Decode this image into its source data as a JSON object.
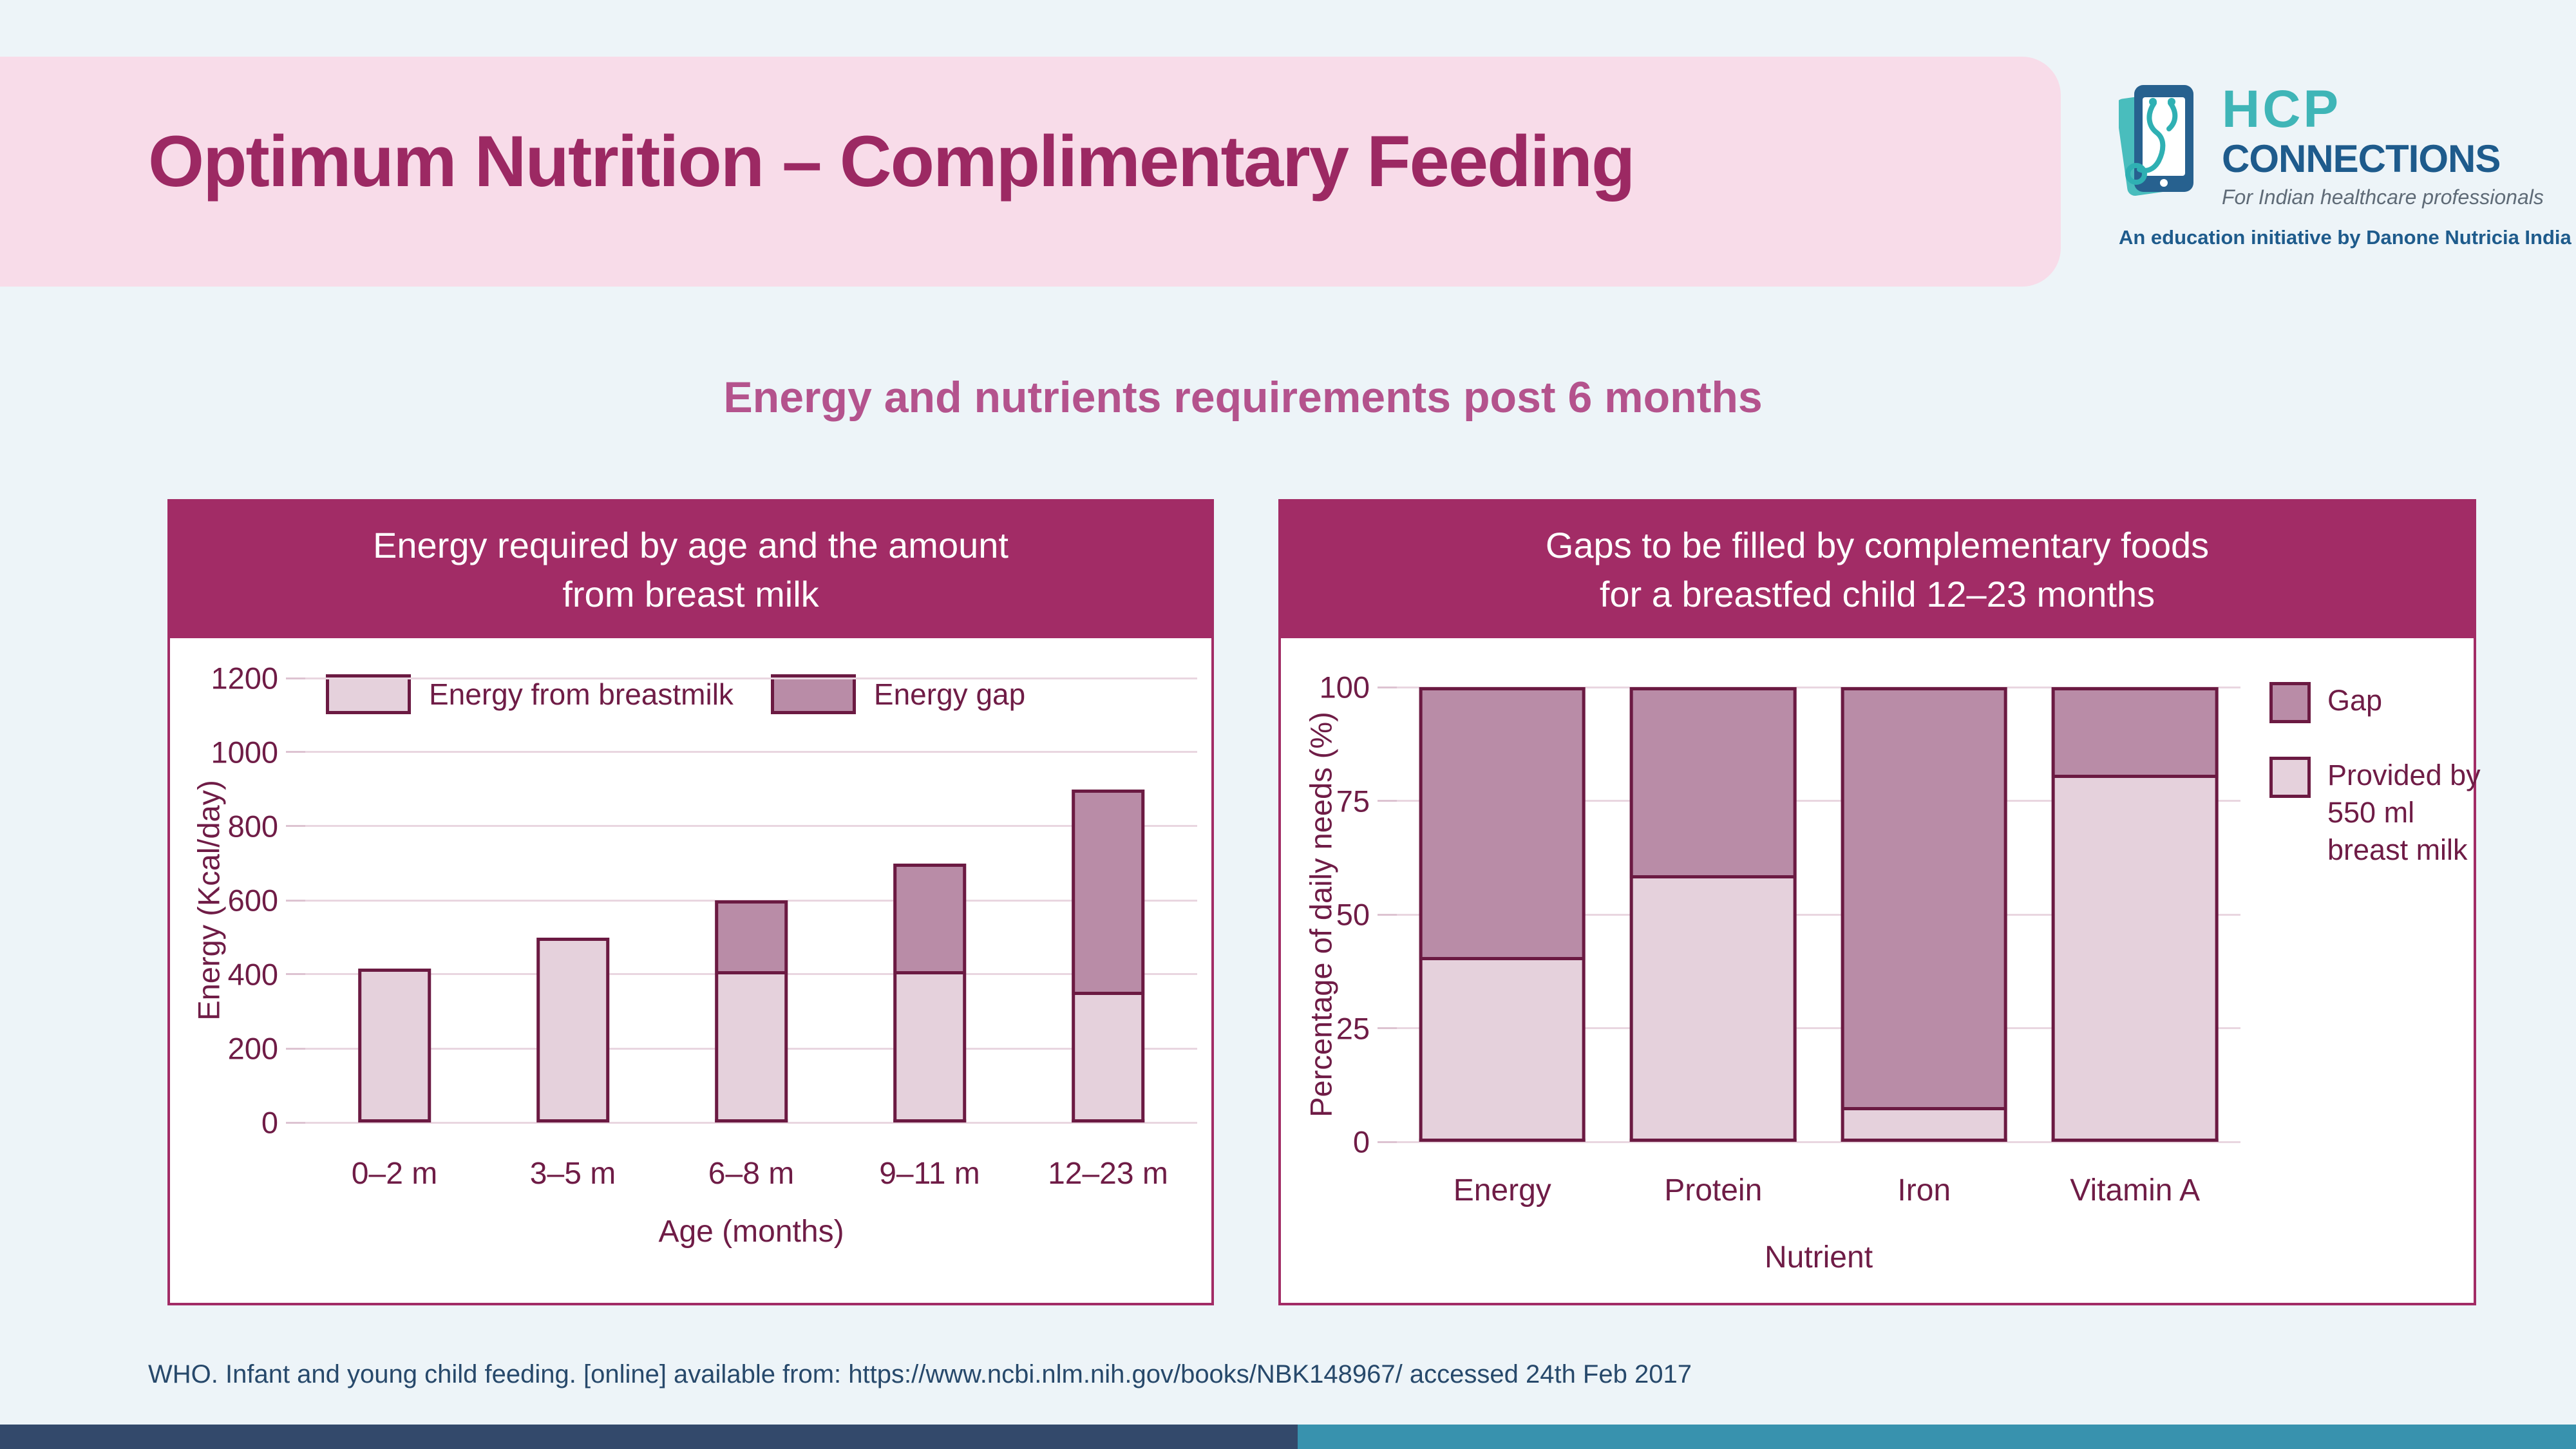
{
  "page": {
    "title": "Optimum Nutrition – Complimentary Feeding",
    "subtitle": "Energy and nutrients requirements post 6 months",
    "citation": "WHO. Infant and young child feeding. [online] available from: https://www.ncbi.nlm.nih.gov/books/NBK148967/ accessed 24th Feb 2017"
  },
  "logo": {
    "brand_line1": "HCP",
    "brand_line2": "CONNECTIONS",
    "tagline": "For Indian healthcare professionals",
    "initiative": "An education initiative by Danone Nutricia India"
  },
  "colors": {
    "page_background": "#edf4f8",
    "header_band": "#f8dce9",
    "title_text": "#9c2963",
    "subtitle_text": "#b4538d",
    "panel_magenta": "#a22c66",
    "bar_light": "#e5d1dc",
    "bar_dark": "#b98ca7",
    "bar_border": "#6b1a42",
    "axis_text": "#6f1c46",
    "gridline": "#e9d6e0",
    "citation_text": "#27496b",
    "footer_navy": "#33496b",
    "footer_teal": "#3892ae",
    "logo_teal": "#3fb5b7",
    "logo_blue": "#1e5b8c"
  },
  "chart_data": [
    {
      "type": "bar",
      "stacked": true,
      "title": "Energy required by age and the amount from breast milk",
      "title_lines": [
        "Energy required by age and the amount",
        "from breast milk"
      ],
      "categories": [
        "0–2 m",
        "3–5 m",
        "6–8 m",
        "9–11 m",
        "12–23 m"
      ],
      "series": [
        {
          "name": "Energy from breastmilk",
          "color": "#e5d1dc",
          "values": [
            415,
            500,
            400,
            400,
            345
          ]
        },
        {
          "name": "Energy gap",
          "color": "#b98ca7",
          "values": [
            0,
            0,
            200,
            300,
            555
          ]
        }
      ],
      "xlabel": "Age (months)",
      "ylabel": "Energy (Kcal/day)",
      "ylim": [
        0,
        1200
      ],
      "yticks": [
        0,
        200,
        400,
        600,
        800,
        1000,
        1200
      ],
      "grid": true,
      "legend_position": "inside-top-left-horizontal"
    },
    {
      "type": "bar",
      "stacked": true,
      "title": "Gaps to be filled by complementary foods for a breastfed child 12–23 months",
      "title_lines": [
        "Gaps to be filled by complementary foods",
        "for a breastfed child 12–23 months"
      ],
      "categories": [
        "Energy",
        "Protein",
        "Iron",
        "Vitamin A"
      ],
      "series": [
        {
          "name": "Provided by 550 ml breast milk",
          "color": "#e5d1dc",
          "values": [
            40,
            58,
            7,
            80
          ]
        },
        {
          "name": "Gap",
          "color": "#b98ca7",
          "values": [
            60,
            42,
            93,
            20
          ]
        }
      ],
      "xlabel": "Nutrient",
      "ylabel": "Percentage of daily needs (%)",
      "ylim": [
        0,
        100
      ],
      "yticks": [
        0,
        25,
        50,
        75,
        100
      ],
      "grid": true,
      "legend_position": "right-vertical"
    }
  ]
}
